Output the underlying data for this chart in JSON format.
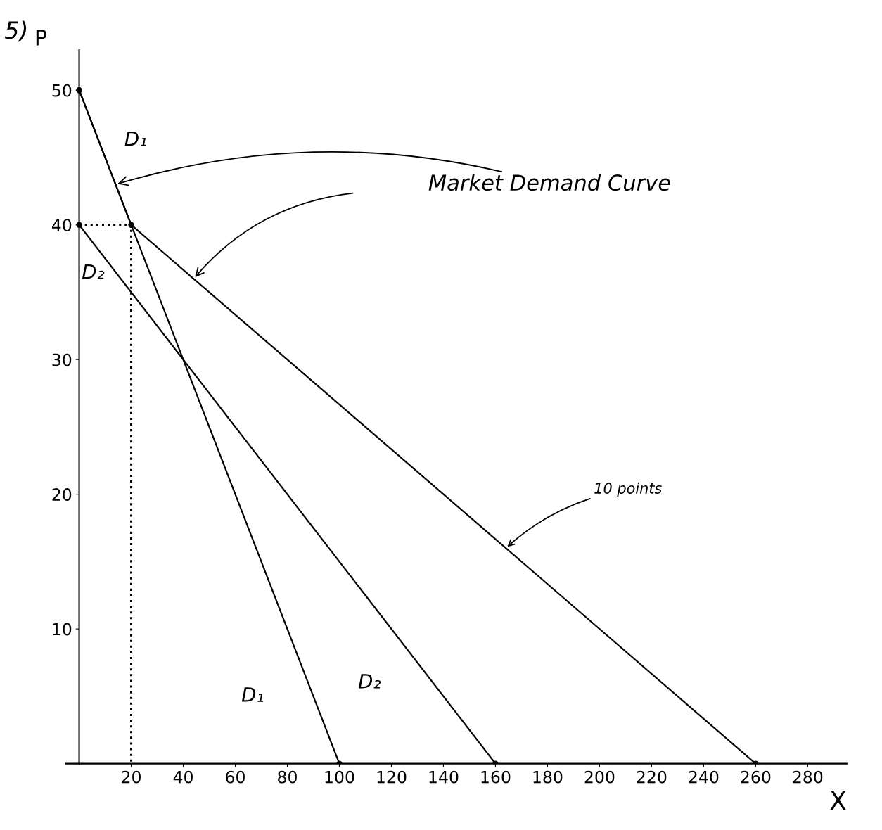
{
  "chart_data": {
    "type": "line",
    "xlabel": "X",
    "ylabel": "P",
    "series": [
      {
        "name": "D₁",
        "color": "#000000",
        "x": [
          0,
          100
        ],
        "values": [
          50,
          0
        ],
        "marker": "circle"
      },
      {
        "name": "D₂",
        "color": "#000000",
        "x": [
          0,
          160
        ],
        "values": [
          40,
          0
        ],
        "marker": "circle"
      },
      {
        "color": "#000000",
        "x": [
          0,
          20,
          260
        ],
        "values": [
          50,
          40,
          0
        ],
        "marker": "circle"
      },
      {
        "color": "#000000",
        "x": [
          0,
          20,
          20
        ],
        "values": [
          40,
          40,
          0
        ],
        "line_style": "dotted",
        "marker": "none"
      }
    ],
    "xlim": [
      -5,
      295
    ],
    "ylim": [
      0,
      53
    ],
    "xticks": [
      20,
      40,
      60,
      80,
      100,
      120,
      140,
      160,
      180,
      200,
      220,
      240,
      260,
      280
    ],
    "yticks": [
      10,
      20,
      30,
      40,
      50
    ],
    "grid": false,
    "legend": false,
    "annotations": [
      "5)",
      {
        "text": "Market Demand Curve",
        "x": 14,
        "y": 43
      },
      {
        "text": "10 points",
        "x": 164,
        "y": 16
      }
    ]
  }
}
